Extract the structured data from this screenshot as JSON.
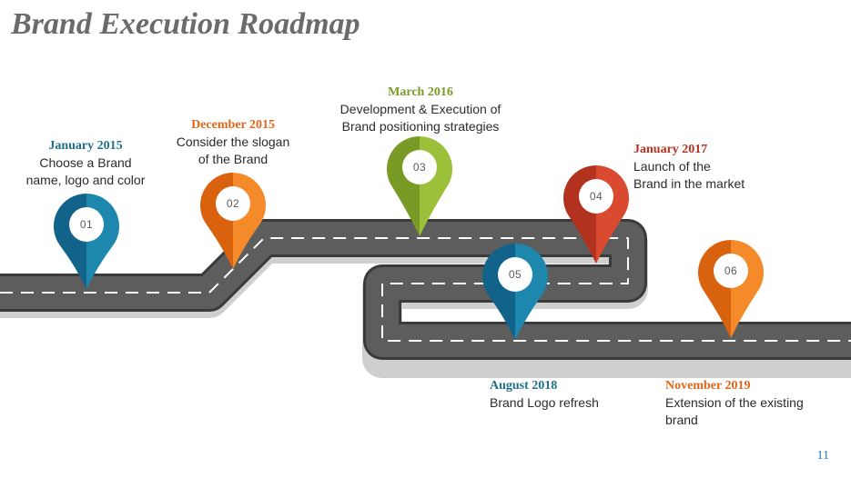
{
  "title": "Brand Execution Roadmap",
  "page_number": "11",
  "colors": {
    "road": "#5b5b5b",
    "road_edge": "#3d3d3d",
    "teal": "#1d7fa3",
    "orange": "#f07a1a",
    "olive": "#8aa430",
    "red": "#c8412c"
  },
  "milestones": [
    {
      "num": "01",
      "date": "January 2015",
      "desc_lines": [
        "Choose a Brand",
        "name, logo and color"
      ],
      "color": "#1d87ad",
      "dark": "#11638a",
      "date_color": "#1f6f8b"
    },
    {
      "num": "02",
      "date": "December 2015",
      "desc_lines": [
        "Consider the slogan",
        "of the Brand"
      ],
      "color": "#f58a2a",
      "dark": "#d9620f",
      "date_color": "#e0661a"
    },
    {
      "num": "03",
      "date": "March 2016",
      "desc_lines": [
        "Development & Execution of",
        "Brand positioning strategies"
      ],
      "color": "#9cc03a",
      "dark": "#7a9a26",
      "date_color": "#7a9a26"
    },
    {
      "num": "04",
      "date": "January 2017",
      "desc_lines": [
        "Launch of the",
        "Brand in the market"
      ],
      "color": "#d94a30",
      "dark": "#b2321d",
      "date_color": "#b8321e"
    },
    {
      "num": "05",
      "date": "August 2018",
      "desc_lines": [
        "Brand Logo refresh"
      ],
      "color": "#1d87ad",
      "dark": "#11638a",
      "date_color": "#1f6f8b"
    },
    {
      "num": "06",
      "date": "November 2019",
      "desc_lines": [
        "Extension of the existing",
        "brand"
      ],
      "color": "#f58a2a",
      "dark": "#d9620f",
      "date_color": "#e0661a"
    }
  ]
}
